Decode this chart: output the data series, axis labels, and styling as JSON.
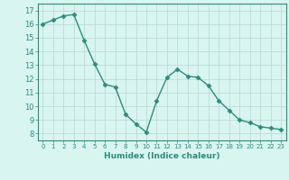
{
  "x": [
    0,
    1,
    2,
    3,
    4,
    5,
    6,
    7,
    8,
    9,
    10,
    11,
    12,
    13,
    14,
    15,
    16,
    17,
    18,
    19,
    20,
    21,
    22,
    23
  ],
  "y": [
    16.0,
    16.3,
    16.6,
    16.7,
    14.8,
    13.1,
    11.6,
    11.4,
    9.4,
    8.7,
    8.1,
    10.4,
    12.1,
    12.7,
    12.2,
    12.1,
    11.5,
    10.4,
    9.7,
    9.0,
    8.8,
    8.5,
    8.4,
    8.3
  ],
  "line_color": "#2e8b7a",
  "marker": "D",
  "marker_size": 2.5,
  "bg_color": "#d8f5f0",
  "grid_color": "#b8d8d2",
  "xlabel": "Humidex (Indice chaleur)",
  "xlim": [
    -0.5,
    23.5
  ],
  "ylim": [
    7.5,
    17.5
  ],
  "yticks": [
    8,
    9,
    10,
    11,
    12,
    13,
    14,
    15,
    16,
    17
  ],
  "xticks": [
    0,
    1,
    2,
    3,
    4,
    5,
    6,
    7,
    8,
    9,
    10,
    11,
    12,
    13,
    14,
    15,
    16,
    17,
    18,
    19,
    20,
    21,
    22,
    23
  ],
  "axis_color": "#2e8b7a",
  "tick_color": "#2e8b7a",
  "label_color": "#2e8b7a"
}
